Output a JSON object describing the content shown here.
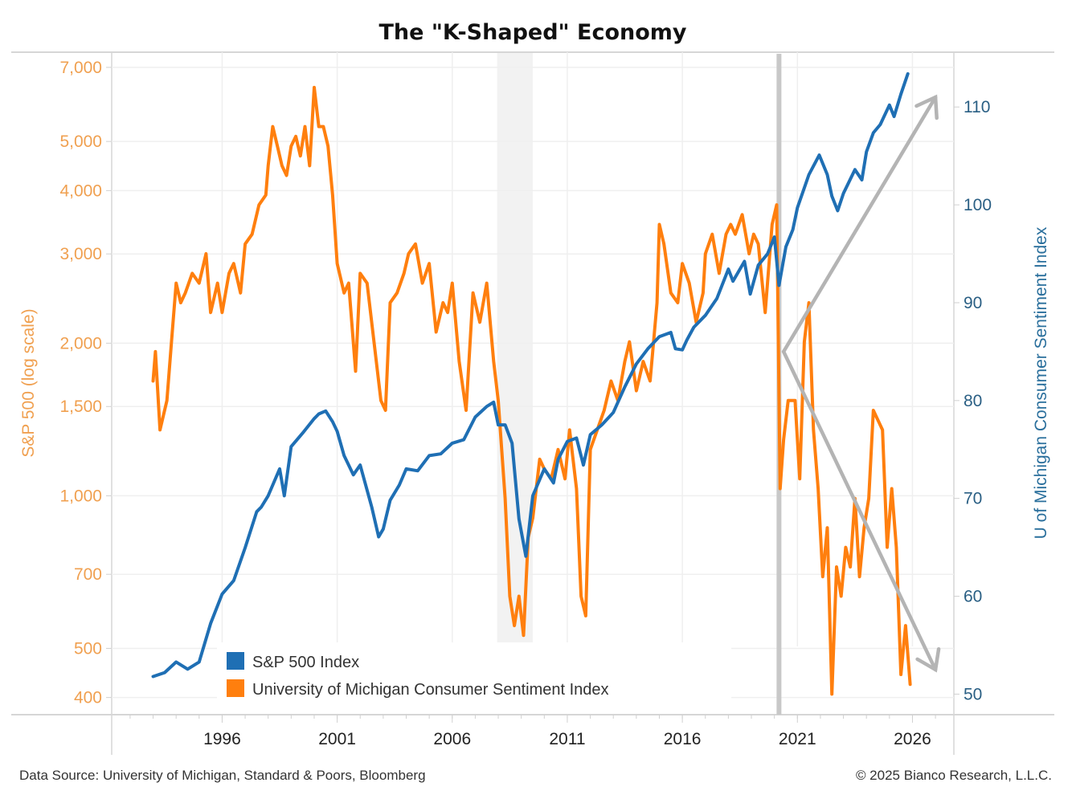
{
  "chart_data": {
    "type": "line",
    "title": "The \"K-Shaped\" Economy",
    "xlabel": "",
    "x_ticks": [
      "1996",
      "2001",
      "2006",
      "2011",
      "2016",
      "2021",
      "2026"
    ],
    "xlim": [
      1991.2,
      2027.8
    ],
    "left_axis": {
      "label": "S&P 500 (log scale)",
      "scale": "log",
      "ylim": [
        370,
        7500
      ],
      "ticks": [
        400,
        500,
        700,
        1000,
        1500,
        2000,
        3000,
        4000,
        5000,
        7000
      ],
      "tick_labels": [
        "400",
        "500",
        "700",
        "1,000",
        "1,500",
        "2,000",
        "3,000",
        "4,000",
        "5,000",
        "7,000"
      ],
      "color": "#f0a050"
    },
    "right_axis": {
      "label": "U of Michigan Consumer Sentiment Index",
      "scale": "linear",
      "ylim": [
        47.9,
        115.6
      ],
      "ticks": [
        50,
        60,
        70,
        80,
        90,
        100,
        110
      ],
      "tick_labels": [
        "50",
        "60",
        "70",
        "80",
        "90",
        "100",
        "110"
      ],
      "color": "#2a5f84"
    },
    "grid": true,
    "shaded_periods": [
      {
        "start": 2007.95,
        "end": 2009.5,
        "color": "#f2f2f2"
      }
    ],
    "vertical_marker": {
      "x": 2020.2,
      "color": "#c8c8c8"
    },
    "legend": {
      "position": "bottom-left",
      "entries": [
        {
          "label": "S&P 500 Index",
          "color": "#1f6fb4"
        },
        {
          "label": "University of Michigan Consumer Sentiment Index",
          "color": "#ff7f0e"
        }
      ]
    },
    "annotations": [
      {
        "type": "arrow",
        "label": "K upper arm",
        "from": [
          2020.4,
          85
        ],
        "to": [
          2027.0,
          111
        ],
        "axis": "right",
        "color": "#b4b4b4"
      },
      {
        "type": "arrow",
        "label": "K lower arm",
        "from": [
          2020.4,
          85
        ],
        "to": [
          2027.0,
          52.5
        ],
        "axis": "right",
        "color": "#b4b4b4"
      },
      {
        "type": "arrow-base",
        "label": "K vertex",
        "at": [
          2020.4,
          85
        ],
        "axis": "right"
      }
    ],
    "series": [
      {
        "name": "S&P 500 Index",
        "axis": "left",
        "color": "#1f6fb4",
        "x": [
          1993.0,
          1993.5,
          1994.0,
          1994.5,
          1995.0,
          1995.5,
          1996.0,
          1996.5,
          1997.0,
          1997.5,
          1997.7,
          1998.0,
          1998.5,
          1998.7,
          1999.0,
          1999.5,
          2000.0,
          2000.2,
          2000.5,
          2000.8,
          2001.0,
          2001.3,
          2001.7,
          2002.0,
          2002.5,
          2002.8,
          2003.0,
          2003.3,
          2003.7,
          2004.0,
          2004.5,
          2005.0,
          2005.5,
          2006.0,
          2006.5,
          2007.0,
          2007.5,
          2007.8,
          2008.0,
          2008.3,
          2008.6,
          2008.9,
          2009.2,
          2009.5,
          2010.0,
          2010.4,
          2010.6,
          2011.0,
          2011.4,
          2011.7,
          2012.0,
          2012.5,
          2013.0,
          2013.5,
          2014.0,
          2014.5,
          2015.0,
          2015.5,
          2015.7,
          2016.0,
          2016.2,
          2016.5,
          2017.0,
          2017.5,
          2018.0,
          2018.2,
          2018.7,
          2018.95,
          2019.3,
          2019.7,
          2020.0,
          2020.2,
          2020.5,
          2020.8,
          2021.0,
          2021.5,
          2021.95,
          2022.3,
          2022.5,
          2022.75,
          2023.0,
          2023.5,
          2023.8,
          2024.0,
          2024.3,
          2024.6,
          2025.0,
          2025.2,
          2025.5,
          2025.8
        ],
        "values": [
          440,
          448,
          470,
          455,
          470,
          560,
          640,
          680,
          790,
          930,
          950,
          1000,
          1130,
          1000,
          1250,
          1330,
          1420,
          1450,
          1470,
          1400,
          1340,
          1200,
          1100,
          1150,
          950,
          830,
          860,
          980,
          1050,
          1130,
          1120,
          1200,
          1210,
          1270,
          1290,
          1430,
          1500,
          1530,
          1380,
          1380,
          1270,
          900,
          760,
          1000,
          1130,
          1060,
          1180,
          1280,
          1300,
          1150,
          1320,
          1380,
          1460,
          1640,
          1820,
          1950,
          2060,
          2100,
          1950,
          1940,
          2030,
          2150,
          2270,
          2450,
          2800,
          2650,
          2900,
          2500,
          2850,
          3000,
          3240,
          2600,
          3100,
          3350,
          3700,
          4300,
          4700,
          4300,
          3900,
          3650,
          3950,
          4400,
          4200,
          4770,
          5200,
          5400,
          5900,
          5600,
          6200,
          6800
        ]
      },
      {
        "name": "University of Michigan Consumer Sentiment Index",
        "axis": "right",
        "color": "#ff7f0e",
        "x": [
          1993.0,
          1993.1,
          1993.3,
          1993.6,
          1993.8,
          1994.0,
          1994.2,
          1994.4,
          1994.7,
          1995.0,
          1995.3,
          1995.5,
          1995.8,
          1996.0,
          1996.3,
          1996.5,
          1996.8,
          1997.0,
          1997.3,
          1997.6,
          1997.9,
          1998.0,
          1998.2,
          1998.4,
          1998.6,
          1998.8,
          1999.0,
          1999.2,
          1999.4,
          1999.6,
          1999.8,
          2000.0,
          2000.2,
          2000.4,
          2000.6,
          2000.8,
          2001.0,
          2001.3,
          2001.5,
          2001.8,
          2002.0,
          2002.3,
          2002.6,
          2002.9,
          2003.1,
          2003.3,
          2003.6,
          2003.9,
          2004.1,
          2004.4,
          2004.7,
          2005.0,
          2005.3,
          2005.6,
          2005.8,
          2006.0,
          2006.3,
          2006.6,
          2006.9,
          2007.2,
          2007.5,
          2007.8,
          2008.0,
          2008.3,
          2008.5,
          2008.7,
          2008.9,
          2009.1,
          2009.3,
          2009.5,
          2009.8,
          2010.0,
          2010.3,
          2010.6,
          2010.9,
          2011.1,
          2011.4,
          2011.6,
          2011.8,
          2012.0,
          2012.3,
          2012.6,
          2012.9,
          2013.2,
          2013.5,
          2013.7,
          2014.0,
          2014.3,
          2014.6,
          2014.9,
          2015.0,
          2015.2,
          2015.5,
          2015.8,
          2016.0,
          2016.3,
          2016.6,
          2016.9,
          2017.0,
          2017.3,
          2017.6,
          2017.9,
          2018.1,
          2018.3,
          2018.6,
          2018.9,
          2019.1,
          2019.3,
          2019.6,
          2019.9,
          2020.1,
          2020.25,
          2020.4,
          2020.6,
          2020.9,
          2021.1,
          2021.3,
          2021.5,
          2021.7,
          2021.9,
          2022.1,
          2022.3,
          2022.5,
          2022.7,
          2022.9,
          2023.1,
          2023.3,
          2023.5,
          2023.7,
          2023.9,
          2024.1,
          2024.3,
          2024.5,
          2024.7,
          2024.9,
          2025.1,
          2025.3,
          2025.5,
          2025.7,
          2025.9
        ],
        "values": [
          82,
          85,
          77,
          80,
          86,
          92,
          90,
          91,
          93,
          92,
          95,
          89,
          92,
          89,
          93,
          94,
          91,
          96,
          97,
          100,
          101,
          104,
          108,
          106,
          104,
          103,
          106,
          107,
          105,
          108,
          104,
          112,
          108,
          108,
          106,
          101,
          94,
          91,
          92,
          83,
          93,
          92,
          86,
          80,
          79,
          90,
          91,
          93,
          95,
          96,
          92,
          94,
          87,
          90,
          89,
          92,
          84,
          79,
          91,
          88,
          92,
          84,
          80,
          70,
          60,
          57,
          60,
          56,
          66,
          68,
          74,
          73,
          72,
          75,
          72,
          77,
          71,
          60,
          58,
          75,
          77,
          79,
          82,
          80,
          84,
          86,
          81,
          84,
          82,
          90,
          98,
          96,
          91,
          90,
          94,
          92,
          88,
          91,
          95,
          97,
          93,
          97,
          98,
          97,
          99,
          95,
          97,
          96,
          89,
          98,
          100,
          71,
          76,
          80,
          80,
          72,
          86,
          90,
          77,
          71,
          62,
          67,
          50,
          63,
          60,
          65,
          63,
          70,
          62,
          67,
          70,
          79,
          78,
          77,
          65,
          71,
          65,
          52,
          57,
          51
        ]
      }
    ]
  },
  "footer": {
    "source": "Data Source: University of Michigan, Standard & Poors, Bloomberg",
    "copyright": "© 2025 Bianco Research, L.L.C."
  }
}
